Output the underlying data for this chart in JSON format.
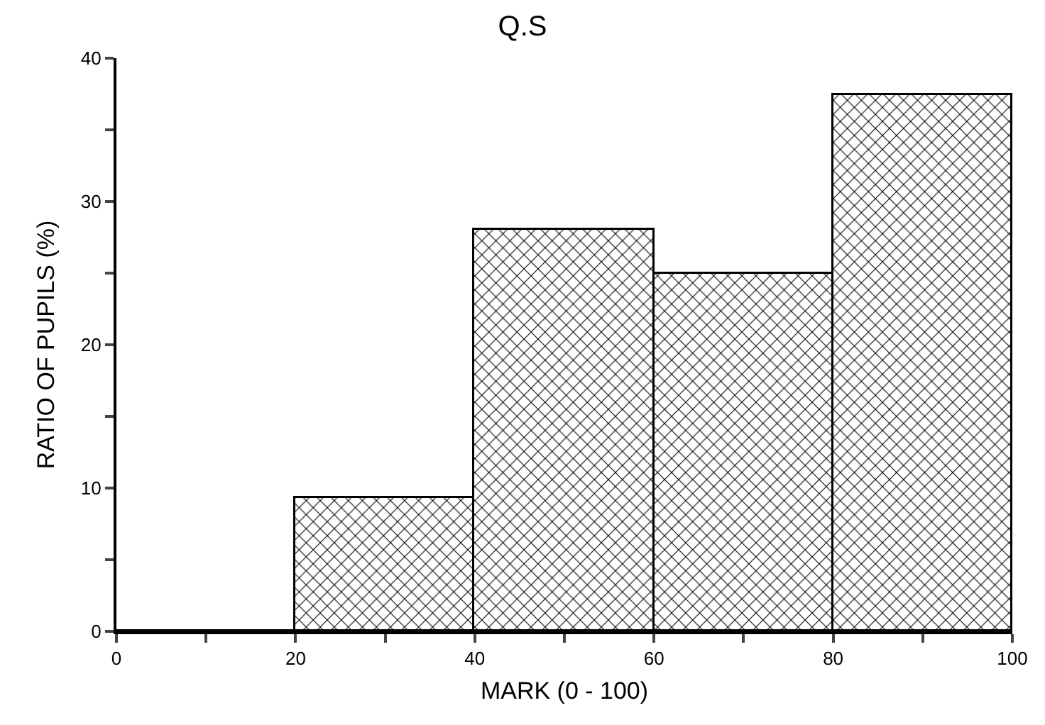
{
  "chart_data": {
    "type": "histogram",
    "title": "Q.S",
    "xlabel": "MARK (0 - 100)",
    "ylabel": "RATIO OF PUPILS (%)",
    "bins": [
      0,
      20,
      40,
      60,
      80,
      100
    ],
    "values": [
      0,
      9.3,
      28,
      25,
      37.4
    ],
    "color": "#000000",
    "xlim": [
      0,
      100
    ],
    "xticks": [
      0,
      {
        "value": 10,
        "label": null
      },
      20,
      {
        "value": 30,
        "label": null
      },
      40,
      {
        "value": 50,
        "label": null
      },
      60,
      {
        "value": 70,
        "label": null
      },
      80,
      {
        "value": 90,
        "label": null
      },
      100
    ],
    "ylim": [
      0,
      40
    ],
    "yticks": [
      0,
      {
        "value": 5,
        "label": null
      },
      10,
      {
        "value": 15,
        "label": null
      },
      20,
      {
        "value": 25,
        "label": null
      },
      30,
      {
        "value": 35,
        "label": null
      },
      40
    ],
    "grid": false,
    "legend": false
  }
}
